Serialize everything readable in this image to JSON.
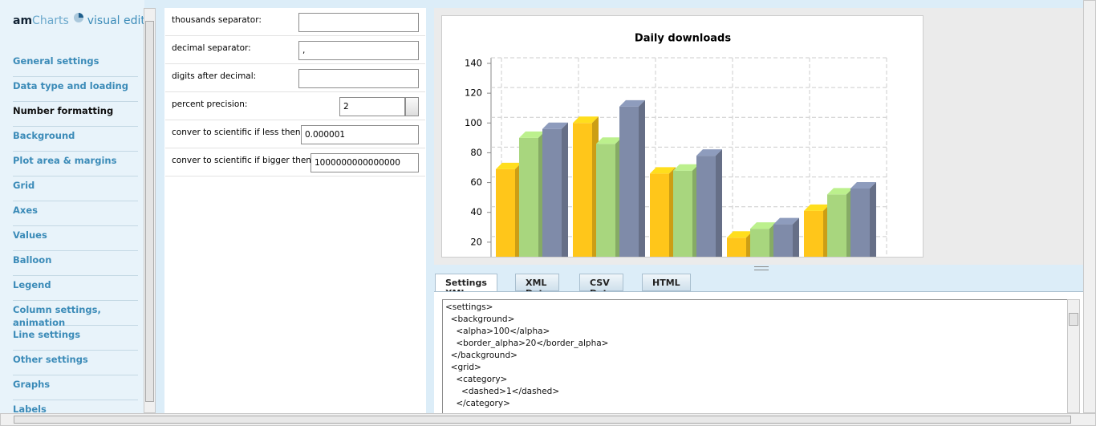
{
  "sidebar": {
    "logo": {
      "brand_bold": "am",
      "brand": "Charts",
      "subtitle": "visual editor"
    },
    "menu": [
      "General settings",
      "Data type and loading",
      "Number formatting",
      "Background",
      "Plot area & margins",
      "Grid",
      "Axes",
      "Values",
      "Balloon",
      "Legend",
      "Column settings, animation",
      "Line settings",
      "Other settings",
      "Graphs",
      "Labels"
    ],
    "active": 2
  },
  "form": {
    "fields": [
      {
        "label": "thousands separator:",
        "value": ""
      },
      {
        "label": "decimal separator:",
        "value": ","
      },
      {
        "label": "digits after decimal:",
        "value": ""
      },
      {
        "label": "percent precision:",
        "value": "2"
      },
      {
        "label": "conver to scientific if less then:",
        "value": "0.000001"
      },
      {
        "label": "conver to scientific if bigger then:",
        "value": "1000000000000000"
      }
    ]
  },
  "chart_data": {
    "type": "bar",
    "title": "Daily downloads",
    "categories": [
      null,
      null,
      null,
      null,
      null
    ],
    "series": [
      {
        "color": "#ffc61a",
        "values": [
          69,
          100,
          66,
          23,
          41
        ]
      },
      {
        "color": "#a8d67e",
        "values": [
          90,
          86,
          68,
          29,
          52
        ]
      },
      {
        "color": "#7f8ba9",
        "values": [
          96,
          111,
          78,
          32,
          56
        ]
      }
    ],
    "ylim": [
      0,
      140
    ],
    "yticks": [
      20,
      40,
      60,
      80,
      100,
      120,
      140
    ],
    "grid": true
  },
  "tabs": {
    "items": [
      "Settings XML",
      "XML Data",
      "CSV Data",
      "HTML"
    ],
    "active": 0
  },
  "code_lines": [
    "<settings>",
    "  <background>",
    "    <alpha>100</alpha>",
    "    <border_alpha>20</border_alpha>",
    "  </background>",
    "  <grid>",
    "    <category>",
    "      <dashed>1</dashed>",
    "    </category>"
  ]
}
